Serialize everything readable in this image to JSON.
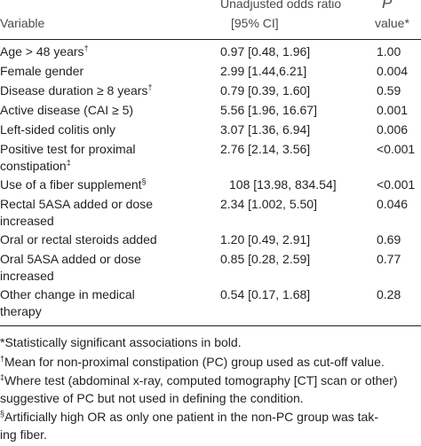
{
  "header": {
    "variable": "Variable",
    "odds_line1": "Unadjusted odds ratio",
    "odds_line2": "[95% CI]",
    "p_line1": "P",
    "p_line2": "value*"
  },
  "rows": [
    {
      "variable": "Age > 48 years",
      "variable_sup": "†",
      "odds": "0.97 [0.48, 1.96]",
      "p": "1.00"
    },
    {
      "variable": "Female gender",
      "odds": "2.99 [1.44,6.21]",
      "p": "0.004"
    },
    {
      "variable": "Disease duration ≥ 8 years",
      "variable_sup": "†",
      "odds": "0.79 [0.39, 1.60]",
      "p": "0.59"
    },
    {
      "variable": "Active disease (CAI ≥ 5)",
      "odds": "5.56 [1.96, 16.67]",
      "p": "0.001"
    },
    {
      "variable": "Left-sided colitis only",
      "odds": "3.07 [1.36, 6.94]",
      "p": "0.006"
    },
    {
      "variable": "Positive test for proximal",
      "variable_line2": "constipation",
      "variable_sup2": "‡",
      "odds": "2.76 [2.14, 3.56]",
      "p": "<0.001"
    },
    {
      "variable": "Use of a fiber supplement",
      "variable_sup": "§",
      "odds": "108 [13.98, 834.54]",
      "p": "<0.001"
    },
    {
      "variable": "Rectal 5ASA added or dose",
      "variable_line2": "increased",
      "odds": "2.34 [1.002, 5.50]",
      "p": "0.046"
    },
    {
      "variable": "Oral or rectal steroids added",
      "odds": "1.20 [0.49, 2.91]",
      "p": "0.69"
    },
    {
      "variable": "Oral 5ASA added or dose",
      "variable_line2": "increased",
      "odds": "0.85 [0.28, 2.59]",
      "p": "0.77"
    },
    {
      "variable": "Other change in medical",
      "variable_line2": "therapy",
      "odds": "0.54 [0.17, 1.68]",
      "p": "0.28"
    }
  ],
  "footnotes": {
    "star": "*Statistically significant associations in bold.",
    "dagger_mark": "†",
    "dagger": "Mean for non-proximal constipation (PC) group used as cut-off value.",
    "ddagger_mark": "‡",
    "ddagger_line1": "Where test (abdominal x-ray, computed tomography [CT] scan or other)",
    "ddagger_line2": "suggestive of PC but not used in defining the condition.",
    "section_mark": "§",
    "section_line1": "Artificially high OR as only one patient in the non-PC group was tak-",
    "section_line2": "ing fiber."
  }
}
